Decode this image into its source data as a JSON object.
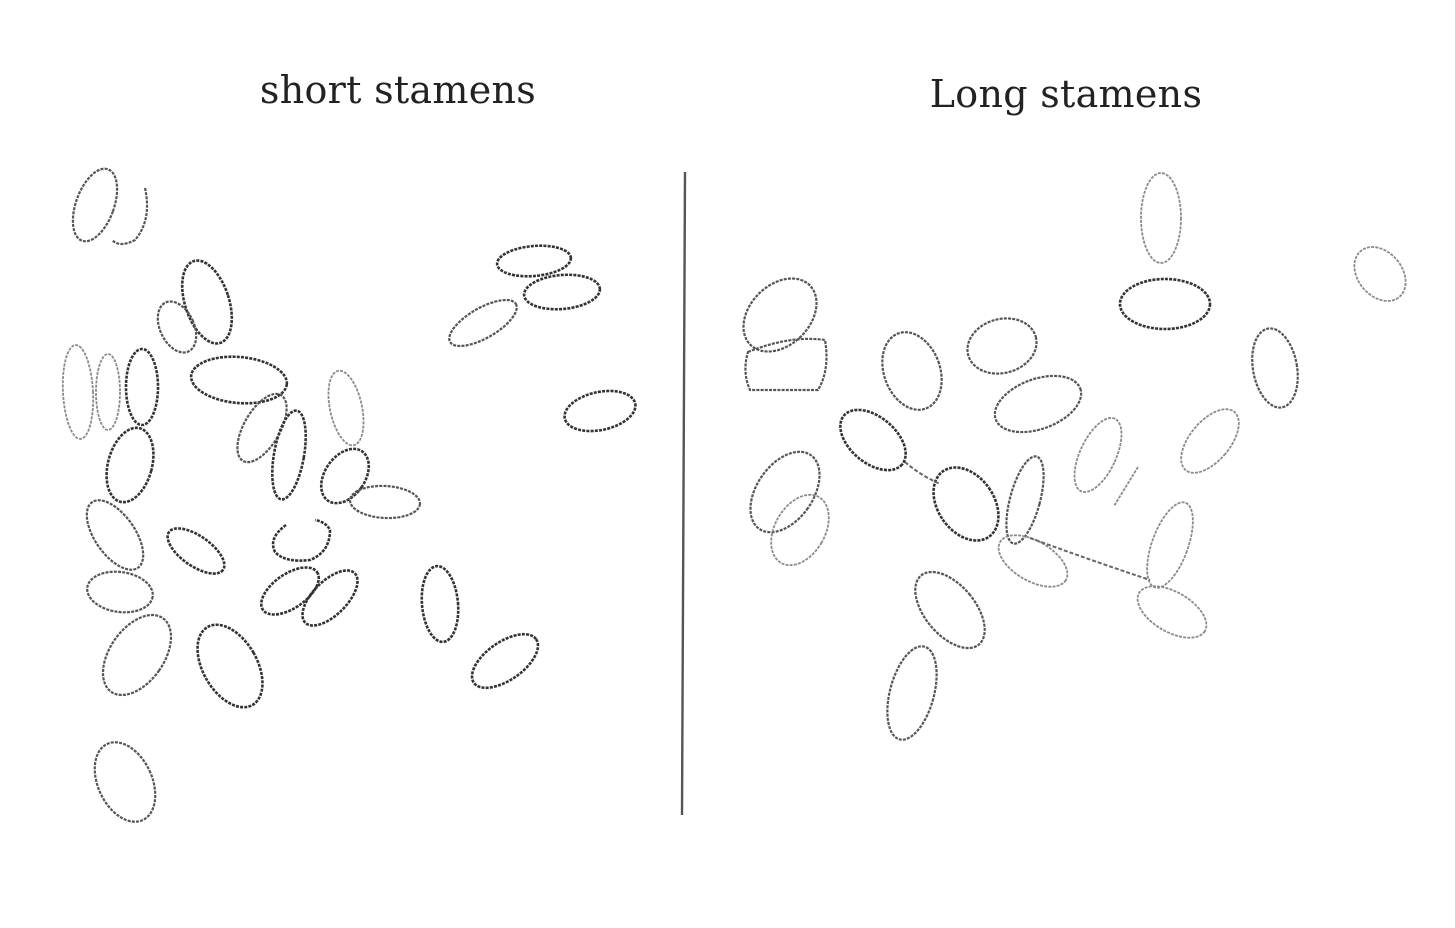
{
  "panels": {
    "left": {
      "title": "short stamens"
    },
    "right": {
      "title": "Long stamens"
    }
  }
}
